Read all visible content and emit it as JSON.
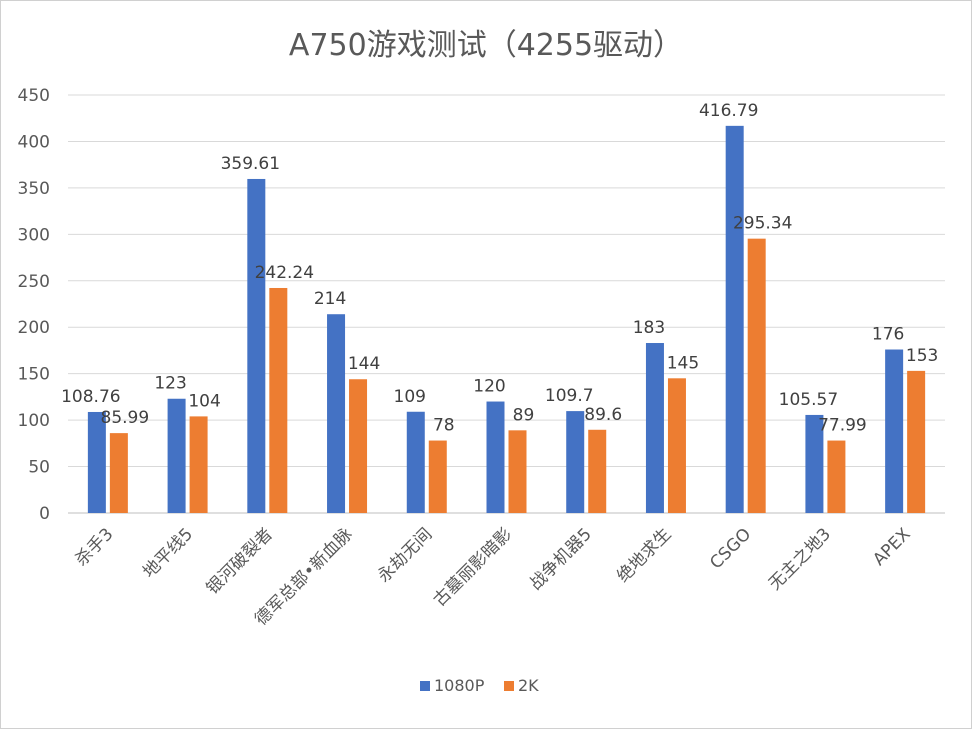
{
  "chart_data": {
    "type": "bar",
    "title": "A750游戏测试（4255驱动）",
    "categories": [
      "杀手3",
      "地平线5",
      "银河破裂者",
      "德军总部•新血脉",
      "永劫无间",
      "古墓丽影暗影",
      "战争机器5",
      "绝地求生",
      "CSGO",
      "无主之地3",
      "APEX"
    ],
    "series": [
      {
        "name": "1080P",
        "color": "#4472c4",
        "values": [
          108.76,
          123,
          359.61,
          214,
          109,
          120,
          109.7,
          183,
          416.79,
          105.57,
          176
        ]
      },
      {
        "name": "2K",
        "color": "#ed7d31",
        "values": [
          85.99,
          104,
          242.24,
          144,
          78,
          89,
          89.6,
          145,
          295.34,
          77.99,
          153
        ]
      }
    ],
    "ylim": [
      0,
      450
    ],
    "yticks": [
      0,
      50,
      100,
      150,
      200,
      250,
      300,
      350,
      400,
      450
    ],
    "grid": true,
    "legend": "bottom"
  }
}
